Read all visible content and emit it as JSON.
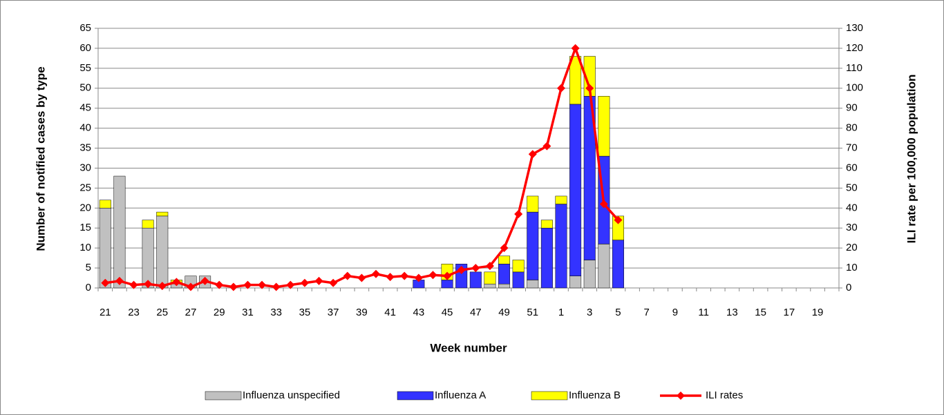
{
  "chart_data": {
    "type": "bar",
    "stacked": true,
    "x_label": "Week number",
    "y_label": "Number of notified cases by type",
    "y2_label": "ILI rate per 100,000 population",
    "categories": [
      "21",
      null,
      "23",
      null,
      "25",
      null,
      "27",
      null,
      "29",
      null,
      "31",
      null,
      "33",
      null,
      "35",
      null,
      "37",
      null,
      "39",
      null,
      "41",
      null,
      "43",
      null,
      "45",
      null,
      "47",
      null,
      "49",
      null,
      "51",
      null,
      "1",
      null,
      "3",
      null,
      "5",
      null,
      "7",
      null,
      "9",
      null,
      "11",
      null,
      "13",
      null,
      "15",
      null,
      "17",
      null,
      "19",
      null
    ],
    "ylim": [
      0,
      65
    ],
    "yticks": [
      0,
      5,
      10,
      15,
      20,
      25,
      30,
      35,
      40,
      45,
      50,
      55,
      60,
      65
    ],
    "y2lim": [
      0,
      130
    ],
    "y2ticks": [
      0,
      10,
      20,
      30,
      40,
      50,
      60,
      70,
      80,
      90,
      100,
      110,
      120,
      130
    ],
    "grid": true,
    "legend": "bottom",
    "series": [
      {
        "name": "Influenza unspecified",
        "color": "#c0c0c0",
        "values": [
          20,
          28,
          0,
          15,
          18,
          1,
          3,
          3,
          0,
          0,
          0,
          0,
          0,
          0,
          0,
          0,
          0,
          0,
          0,
          0,
          0,
          0,
          0,
          0,
          0,
          0,
          0,
          1,
          1,
          0,
          2,
          0,
          0,
          3,
          7,
          11,
          0,
          null,
          null,
          null,
          null,
          null,
          null,
          null,
          null,
          null,
          null,
          null,
          null,
          null,
          null,
          null
        ]
      },
      {
        "name": "Influenza A",
        "color": "#3333ff",
        "values": [
          0,
          0,
          0,
          0,
          0,
          0,
          0,
          0,
          0,
          0,
          0,
          0,
          0,
          0,
          0,
          0,
          0,
          0,
          0,
          0,
          0,
          0,
          2,
          0,
          2,
          6,
          4,
          0,
          5,
          4,
          17,
          15,
          21,
          43,
          41,
          22,
          12,
          null,
          null,
          null,
          null,
          null,
          null,
          null,
          null,
          null,
          null,
          null,
          null,
          null,
          null,
          null
        ]
      },
      {
        "name": "Influenza B",
        "color": "#ffff00",
        "values": [
          2,
          0,
          0,
          2,
          1,
          1,
          0,
          0,
          0,
          0,
          0,
          0,
          0,
          0,
          0,
          0,
          0,
          0,
          0,
          0,
          0,
          0,
          0,
          0,
          4,
          0,
          0,
          3,
          2,
          3,
          4,
          2,
          2,
          12,
          10,
          15,
          6,
          null,
          null,
          null,
          null,
          null,
          null,
          null,
          null,
          null,
          null,
          null,
          null,
          null,
          null,
          null
        ]
      },
      {
        "name": "ILI rates",
        "color": "#ff0000",
        "type": "line",
        "axis": "y2",
        "values": [
          2.5,
          3.5,
          1.5,
          2,
          1,
          3,
          0.5,
          3.5,
          1.5,
          0.5,
          1.5,
          1.5,
          0.5,
          1.5,
          2.5,
          3.5,
          2.5,
          6,
          5,
          7,
          5.5,
          6,
          5,
          6.5,
          6,
          9,
          10,
          11,
          20,
          37,
          67,
          71,
          100,
          120,
          100,
          42,
          34,
          null,
          null,
          null,
          null,
          null,
          null,
          null,
          null,
          null,
          null,
          null,
          null,
          null,
          null,
          null
        ]
      }
    ]
  }
}
